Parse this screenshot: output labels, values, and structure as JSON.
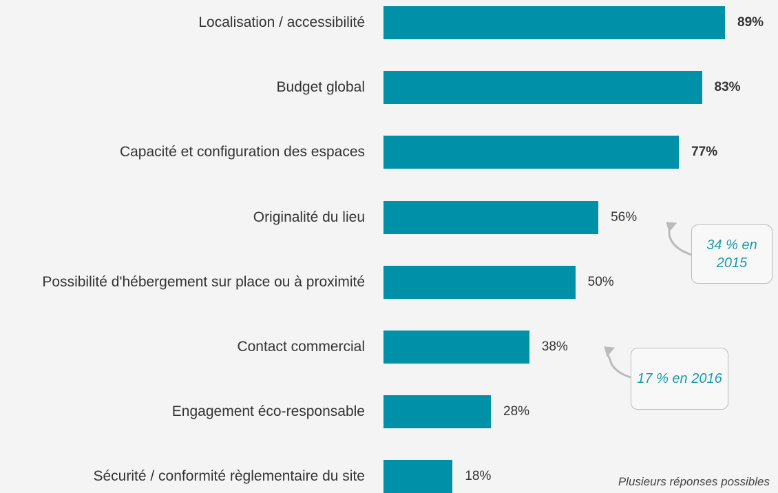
{
  "chart_data": {
    "type": "bar",
    "orientation": "horizontal",
    "categories": [
      "Localisation / accessibilité",
      "Budget global",
      "Capacité et configuration des espaces",
      "Originalité du lieu",
      "Possibilité d'hébergement sur place ou à proximité",
      "Contact commercial",
      "Engagement éco-responsable",
      "Sécurité / conformité règlementaire du site"
    ],
    "values": [
      89,
      83,
      77,
      56,
      50,
      38,
      28,
      18
    ],
    "value_labels": [
      "89%",
      "83%",
      "77%",
      "56%",
      "50%",
      "38%",
      "28%",
      "18%"
    ],
    "color": "#0090a8",
    "annotations": [
      "34 % en 2015",
      "17 % en 2016"
    ],
    "note": "Plusieurs réponses possibles"
  }
}
